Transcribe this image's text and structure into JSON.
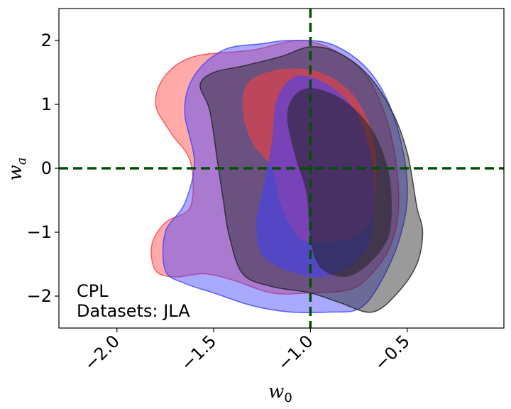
{
  "chart_data": {
    "type": "contour",
    "xlabel": "w0",
    "ylabel": "wa",
    "xlim": [
      -2.3,
      0.0
    ],
    "ylim": [
      -2.5,
      2.5
    ],
    "x_ticks": [
      -2.0,
      -1.5,
      -1.0,
      -0.5
    ],
    "x_tick_labels": [
      "−2.0",
      "−1.5",
      "−1.0",
      "−0.5"
    ],
    "y_ticks": [
      -2,
      -1,
      0,
      1,
      2
    ],
    "y_tick_labels": [
      "−2",
      "−1",
      "0",
      "1",
      "2"
    ],
    "annotation": [
      "CPL",
      "Datasets: JLA"
    ],
    "reference_lines": [
      {
        "axis": "x",
        "value": -1.0,
        "color": "#005000",
        "style": "dashed"
      },
      {
        "axis": "y",
        "value": 0.0,
        "color": "#005000",
        "style": "dashed"
      }
    ],
    "series": [
      {
        "color": "#ff4040",
        "outer": [
          [
            -1.3,
            1.85
          ],
          [
            -1.05,
            2.0
          ],
          [
            -0.85,
            1.8
          ],
          [
            -0.7,
            1.4
          ],
          [
            -0.6,
            0.7
          ],
          [
            -0.55,
            -0.1
          ],
          [
            -0.55,
            -0.8
          ],
          [
            -0.6,
            -1.3
          ],
          [
            -0.7,
            -1.7
          ],
          [
            -0.8,
            -1.9
          ],
          [
            -1.0,
            -1.95
          ],
          [
            -1.2,
            -1.95
          ],
          [
            -1.4,
            -1.75
          ],
          [
            -1.55,
            -1.65
          ],
          [
            -1.7,
            -1.7
          ],
          [
            -1.8,
            -1.6
          ],
          [
            -1.82,
            -1.2
          ],
          [
            -1.75,
            -0.85
          ],
          [
            -1.62,
            -0.6
          ],
          [
            -1.62,
            0.1
          ],
          [
            -1.72,
            0.55
          ],
          [
            -1.8,
            1.0
          ],
          [
            -1.75,
            1.45
          ],
          [
            -1.6,
            1.75
          ]
        ],
        "inner": [
          [
            -1.15,
            1.55
          ],
          [
            -0.95,
            1.5
          ],
          [
            -0.78,
            1.15
          ],
          [
            -0.68,
            0.55
          ],
          [
            -0.66,
            -0.1
          ],
          [
            -0.68,
            -0.75
          ],
          [
            -0.76,
            -1.05
          ],
          [
            -0.9,
            -1.15
          ],
          [
            -1.05,
            -1.1
          ],
          [
            -1.15,
            -0.6
          ],
          [
            -1.2,
            0.0
          ],
          [
            -1.3,
            0.4
          ],
          [
            -1.35,
            0.9
          ],
          [
            -1.32,
            1.35
          ]
        ]
      },
      {
        "color": "#4040ff",
        "outer": [
          [
            -1.1,
            2.0
          ],
          [
            -0.9,
            1.95
          ],
          [
            -0.72,
            1.6
          ],
          [
            -0.6,
            1.05
          ],
          [
            -0.52,
            0.25
          ],
          [
            -0.5,
            -0.5
          ],
          [
            -0.55,
            -1.2
          ],
          [
            -0.65,
            -1.85
          ],
          [
            -0.75,
            -2.2
          ],
          [
            -0.9,
            -2.25
          ],
          [
            -1.1,
            -2.25
          ],
          [
            -1.3,
            -2.15
          ],
          [
            -1.5,
            -1.95
          ],
          [
            -1.65,
            -1.8
          ],
          [
            -1.75,
            -1.6
          ],
          [
            -1.75,
            -1.0
          ],
          [
            -1.65,
            -0.55
          ],
          [
            -1.6,
            0.1
          ],
          [
            -1.65,
            0.9
          ],
          [
            -1.6,
            1.45
          ],
          [
            -1.45,
            1.85
          ],
          [
            -1.25,
            1.95
          ]
        ],
        "inner": [
          [
            -1.03,
            1.45
          ],
          [
            -0.88,
            1.25
          ],
          [
            -0.75,
            0.8
          ],
          [
            -0.68,
            0.1
          ],
          [
            -0.67,
            -0.6
          ],
          [
            -0.7,
            -1.2
          ],
          [
            -0.8,
            -1.55
          ],
          [
            -0.95,
            -1.7
          ],
          [
            -1.12,
            -1.6
          ],
          [
            -1.25,
            -1.35
          ],
          [
            -1.28,
            -0.85
          ],
          [
            -1.25,
            -0.4
          ],
          [
            -1.2,
            0.4
          ],
          [
            -1.18,
            1.0
          ],
          [
            -1.12,
            1.35
          ]
        ]
      },
      {
        "color": "#202020",
        "outer": [
          [
            -1.15,
            1.75
          ],
          [
            -1.0,
            1.9
          ],
          [
            -0.85,
            1.8
          ],
          [
            -0.7,
            1.45
          ],
          [
            -0.58,
            0.9
          ],
          [
            -0.5,
            0.25
          ],
          [
            -0.45,
            -0.6
          ],
          [
            -0.42,
            -1.0
          ],
          [
            -0.45,
            -1.5
          ],
          [
            -0.55,
            -1.95
          ],
          [
            -0.68,
            -2.25
          ],
          [
            -0.85,
            -2.1
          ],
          [
            -1.0,
            -1.95
          ],
          [
            -1.2,
            -1.85
          ],
          [
            -1.35,
            -1.65
          ],
          [
            -1.42,
            -1.05
          ],
          [
            -1.45,
            -0.5
          ],
          [
            -1.48,
            0.1
          ],
          [
            -1.52,
            0.9
          ],
          [
            -1.57,
            1.3
          ],
          [
            -1.5,
            1.5
          ],
          [
            -1.35,
            1.6
          ]
        ],
        "inner": [
          [
            -0.98,
            1.25
          ],
          [
            -0.82,
            1.05
          ],
          [
            -0.68,
            0.6
          ],
          [
            -0.6,
            0.0
          ],
          [
            -0.58,
            -0.6
          ],
          [
            -0.6,
            -1.1
          ],
          [
            -0.7,
            -1.5
          ],
          [
            -0.82,
            -1.7
          ],
          [
            -0.95,
            -1.55
          ],
          [
            -1.0,
            -1.1
          ],
          [
            -1.02,
            -0.4
          ],
          [
            -1.08,
            0.2
          ],
          [
            -1.12,
            0.8
          ],
          [
            -1.08,
            1.15
          ]
        ]
      }
    ]
  }
}
